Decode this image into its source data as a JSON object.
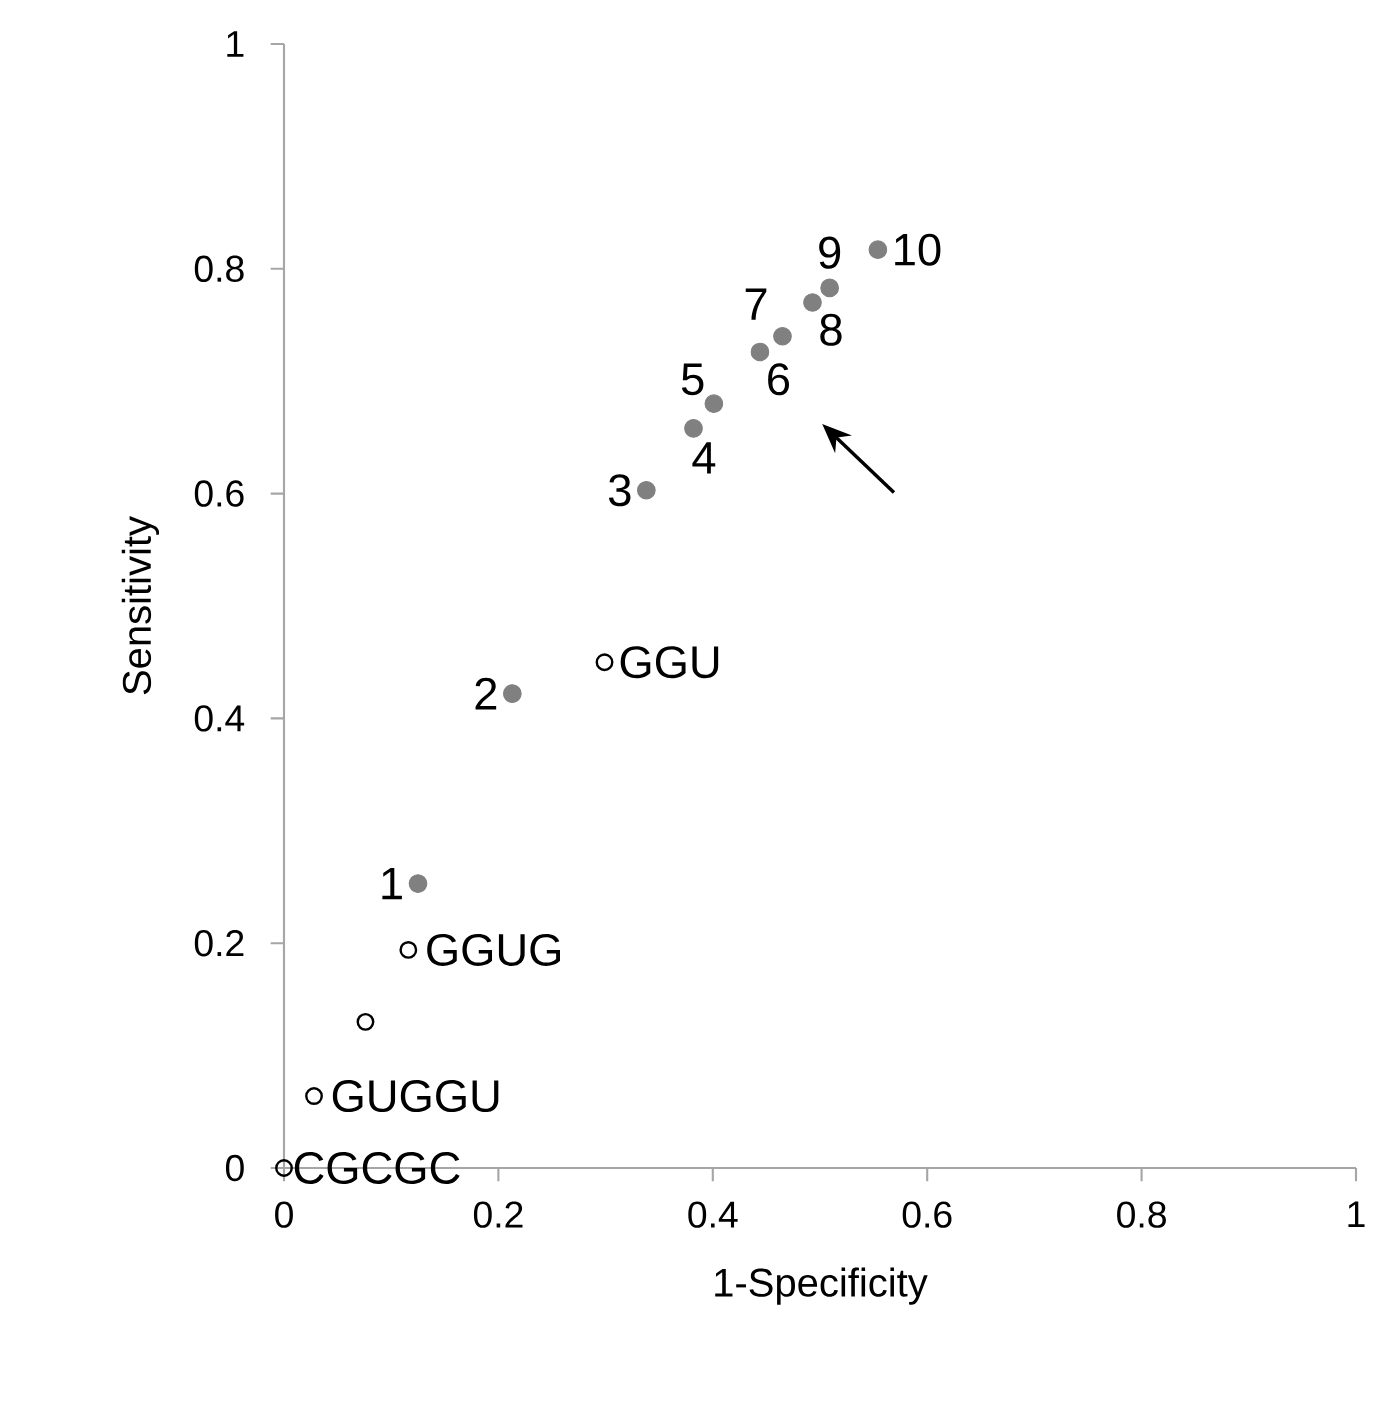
{
  "chart_data": {
    "type": "scatter",
    "xlabel": "1-Specificity",
    "ylabel": "Sensitivity",
    "xlim": [
      0,
      1
    ],
    "ylim": [
      0,
      1
    ],
    "xticks": [
      0,
      0.2,
      0.4,
      0.6,
      0.8,
      1
    ],
    "yticks": [
      0,
      0.2,
      0.4,
      0.6,
      0.8,
      1
    ],
    "marker": "circle",
    "series": [
      {
        "color": "#808080",
        "x": [
          0.125,
          0.213,
          0.338,
          0.382,
          0.401,
          0.444,
          0.465,
          0.493,
          0.509,
          0.554
        ],
        "values": [
          0.253,
          0.422,
          0.603,
          0.658,
          0.68,
          0.726,
          0.74,
          0.77,
          0.783,
          0.817
        ]
      },
      {
        "color": "#000000",
        "x": [
          0.299,
          0.116,
          0.076,
          0.028,
          0
        ],
        "values": [
          0.45,
          0.194,
          0.13,
          0.064,
          0
        ]
      }
    ],
    "annotations": [
      {
        "text": "1",
        "x": 0.125,
        "y": 0.253
      },
      {
        "text": "2",
        "x": 0.213,
        "y": 0.422
      },
      {
        "text": "3",
        "x": 0.338,
        "y": 0.603
      },
      {
        "text": "4",
        "x": 0.382,
        "y": 0.658
      },
      {
        "text": "5",
        "x": 0.401,
        "y": 0.68
      },
      {
        "text": "6",
        "x": 0.444,
        "y": 0.726
      },
      {
        "text": "7",
        "x": 0.465,
        "y": 0.74
      },
      {
        "text": "8",
        "x": 0.493,
        "y": 0.77
      },
      {
        "text": "9",
        "x": 0.509,
        "y": 0.783
      },
      {
        "text": "10",
        "x": 0.554,
        "y": 0.817
      },
      {
        "text": "GGU",
        "x": 0.299,
        "y": 0.45
      },
      {
        "text": "GGUG",
        "x": 0.116,
        "y": 0.194
      },
      {
        "text": "GUGGU",
        "x": 0.028,
        "y": 0.064
      },
      {
        "text": "CGCGC",
        "x": 0,
        "y": 0
      }
    ]
  }
}
